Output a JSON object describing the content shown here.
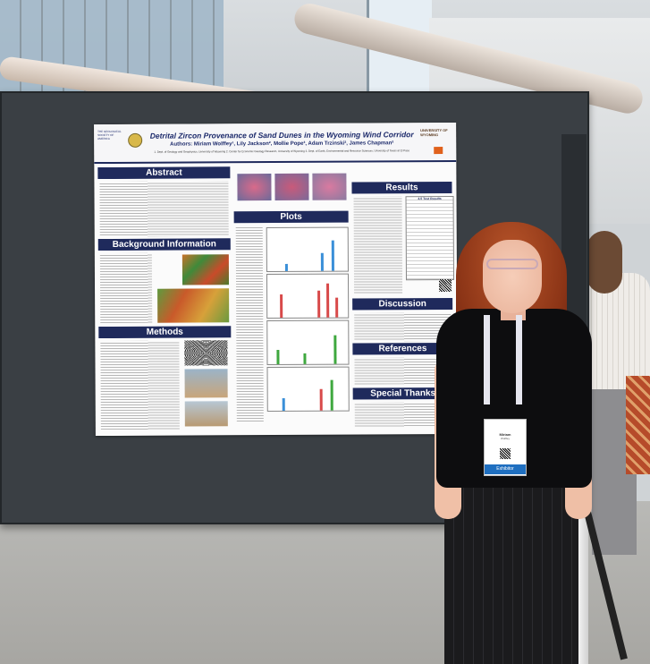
{
  "poster": {
    "title": "Detrital Zircon Provenance of Sand Dunes in the Wyoming Wind Corridor",
    "authors": "Authors: Miriam Wolffey¹, Lily Jackson², Mollie Pope³, Adam Trzinski², James Chapman²",
    "affiliation": "1. Dept. of Geology and Geophysics, University of Wyoming  2. Center for Economic Geology Research, University of Wyoming  3. Dept. of Earth, Environmental and Resource Sciences, University of Texas at El Paso",
    "gsa_logo": "THE GEOLOGICAL SOCIETY OF AMERICA",
    "uw_logo": "UNIVERSITY OF WYOMING",
    "sections": {
      "abstract": "Abstract",
      "background": "Background Information",
      "methods": "Methods",
      "plots": "Plots",
      "results": "Results",
      "discussion": "Discussion",
      "references": "References",
      "thanks": "Special Thanks"
    },
    "results_table_title": "4.0 Test Results"
  },
  "badge": {
    "name": "Miriam",
    "org": "Wolffey",
    "role": "Exhibitor"
  },
  "colors": {
    "poster_navy": "#1f2a5c",
    "plot_blue": "#3a8fd8",
    "plot_red": "#d84a4a",
    "plot_green": "#3fa83f",
    "hair": "#a5431f"
  }
}
